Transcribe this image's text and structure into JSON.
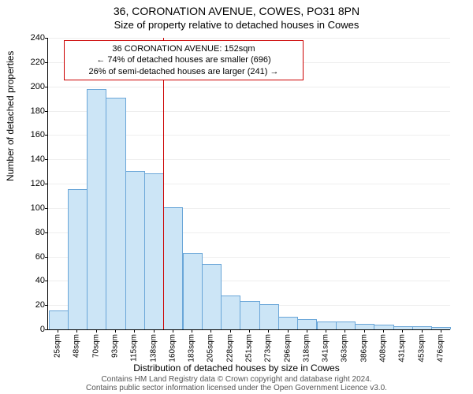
{
  "title": "36, CORONATION AVENUE, COWES, PO31 8PN",
  "subtitle": "Size of property relative to detached houses in Cowes",
  "ylabel": "Number of detached properties",
  "xlabel": "Distribution of detached houses by size in Cowes",
  "footer_line1": "Contains HM Land Registry data © Crown copyright and database right 2024.",
  "footer_line2": "Contains public sector information licensed under the Open Government Licence v3.0.",
  "chart": {
    "type": "histogram",
    "ylim": [
      0,
      240
    ],
    "ytick_step": 20,
    "bar_fill": "#cce5f6",
    "bar_stroke": "#6aa6d8",
    "grid_color": "#eeeeee",
    "background_color": "#ffffff",
    "refline_color": "#cc0000",
    "refline_position_sqm": 152,
    "x_categories": [
      "25sqm",
      "48sqm",
      "70sqm",
      "93sqm",
      "115sqm",
      "138sqm",
      "160sqm",
      "183sqm",
      "205sqm",
      "228sqm",
      "251sqm",
      "273sqm",
      "296sqm",
      "318sqm",
      "341sqm",
      "363sqm",
      "386sqm",
      "408sqm",
      "431sqm",
      "453sqm",
      "476sqm"
    ],
    "values": [
      15,
      115,
      197,
      190,
      130,
      128,
      100,
      62,
      53,
      27,
      23,
      20,
      10,
      8,
      6,
      6,
      4,
      3,
      2,
      2,
      1
    ],
    "bar_width_ratio": 0.95
  },
  "annotation": {
    "line1": "36 CORONATION AVENUE: 152sqm",
    "line2": "← 74% of detached houses are smaller (696)",
    "line3": "26% of semi-detached houses are larger (241) →",
    "border_color": "#cc0000"
  }
}
